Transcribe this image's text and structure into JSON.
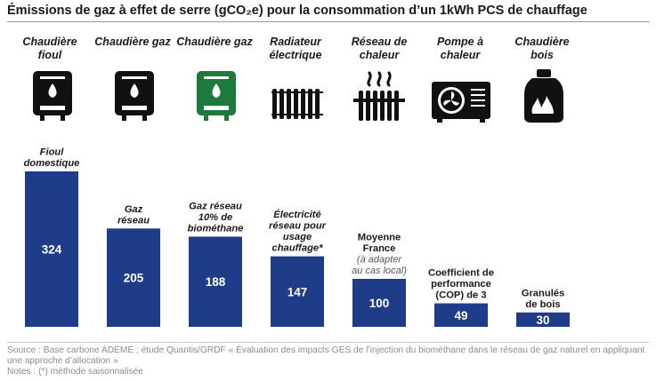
{
  "header": {
    "title": "Émissions de gaz à effet de serre (gCO₂e) pour la consommation d’un 1kWh PCS de chauffage"
  },
  "equipment": [
    {
      "label": "Chaudière fioul",
      "icon": "oil-boiler-icon",
      "color": "#111111"
    },
    {
      "label": "Chaudière gaz",
      "icon": "gas-boiler-icon",
      "color": "#111111"
    },
    {
      "label": "Chaudière gaz",
      "icon": "biomethane-boiler-icon",
      "color": "#1e7a3c"
    },
    {
      "label": "Radiateur électrique",
      "icon": "electric-radiator-icon",
      "color": "#111111"
    },
    {
      "label": "Réseau de chaleur",
      "icon": "heating-network-icon",
      "color": "#111111"
    },
    {
      "label": "Pompe à chaleur",
      "icon": "heat-pump-icon",
      "color": "#111111"
    },
    {
      "label": "Chaudière bois",
      "icon": "wood-boiler-icon",
      "color": "#111111"
    }
  ],
  "chart_data": {
    "type": "bar",
    "categories": [
      "Fioul domestique",
      "Gaz réseau",
      "Gaz réseau 10% de biométhane",
      "Électricité réseau pour usage chauffage*",
      "Moyenne France (à adapter au cas local)",
      "Coefficient de performance (COP) de 3",
      "Granulés de bois"
    ],
    "values": [
      324,
      205,
      188,
      147,
      100,
      49,
      30
    ],
    "bar_color": "#1f3c88",
    "ylim": [
      0,
      324
    ]
  },
  "footer": {
    "source": "Source : Base carbone ADEME ; étude Quantis/GRDF « Évaluation des impacts GES de l’injection du biométhane dans le réseau de gaz naturel en appliquant une approche d’allocation »",
    "notes": "Notes : (*) méthode saisonnalisée"
  }
}
